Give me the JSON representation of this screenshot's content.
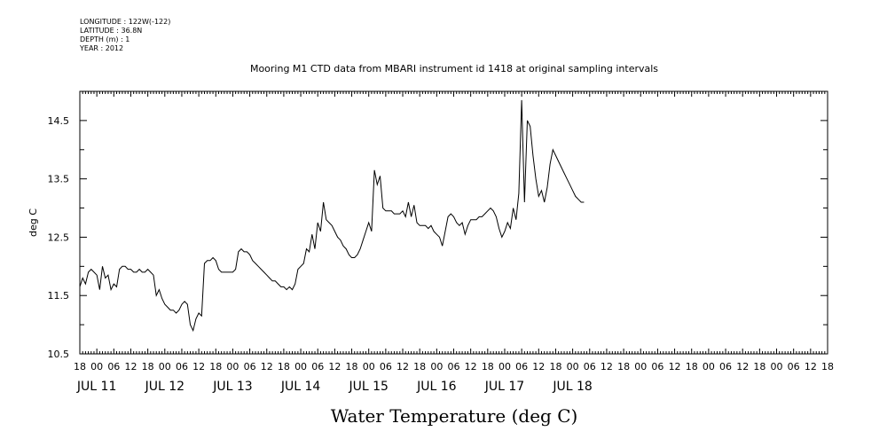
{
  "header": {
    "longitude": "LONGITUDE : 122W(-122)",
    "latitude": "LATITUDE : 36.8N",
    "depth": "DEPTH (m) : 1",
    "year": "YEAR : 2012"
  },
  "chart_data": {
    "type": "line",
    "title": "Mooring M1 CTD data from MBARI instrument id 1418 at original sampling intervals",
    "xlabel": "Water Temperature (deg C)",
    "ylabel": "deg C",
    "x_hour_range": [
      -6,
      258
    ],
    "ylim": [
      10.5,
      15.0
    ],
    "y_ticks": [
      "10.5",
      "11.5",
      "12.5",
      "13.5",
      "14.5"
    ],
    "hour_ticks": [
      "18",
      "00",
      "06",
      "12",
      "18",
      "00",
      "06",
      "12",
      "18",
      "00",
      "06",
      "12",
      "18",
      "00",
      "06",
      "12",
      "18",
      "00",
      "06",
      "12",
      "18",
      "00",
      "06",
      "12",
      "18",
      "00",
      "06",
      "12",
      "18",
      "00",
      "06",
      "12",
      "18",
      "00",
      "06",
      "12",
      "18",
      "00",
      "06",
      "12",
      "18",
      "00",
      "06",
      "12",
      "18"
    ],
    "date_labels": [
      "JUL 11",
      "JUL 12",
      "JUL 13",
      "JUL 14",
      "JUL 15",
      "JUL 16",
      "JUL 17",
      "JUL 18"
    ],
    "series": [
      {
        "points": [
          [
            -6,
            11.65
          ],
          [
            -5,
            11.8
          ],
          [
            -4,
            11.7
          ],
          [
            -3,
            11.9
          ],
          [
            -2,
            11.95
          ],
          [
            -1,
            11.9
          ],
          [
            0,
            11.85
          ],
          [
            1,
            11.6
          ],
          [
            2,
            12.0
          ],
          [
            3,
            11.8
          ],
          [
            4,
            11.85
          ],
          [
            5,
            11.6
          ],
          [
            6,
            11.7
          ],
          [
            7,
            11.65
          ],
          [
            8,
            11.95
          ],
          [
            9,
            12.0
          ],
          [
            10,
            12.0
          ],
          [
            11,
            11.95
          ],
          [
            12,
            11.95
          ],
          [
            13,
            11.9
          ],
          [
            14,
            11.9
          ],
          [
            15,
            11.95
          ],
          [
            16,
            11.9
          ],
          [
            17,
            11.9
          ],
          [
            18,
            11.95
          ],
          [
            19,
            11.9
          ],
          [
            20,
            11.85
          ],
          [
            21,
            11.5
          ],
          [
            22,
            11.6
          ],
          [
            23,
            11.45
          ],
          [
            24,
            11.35
          ],
          [
            25,
            11.3
          ],
          [
            26,
            11.25
          ],
          [
            27,
            11.25
          ],
          [
            28,
            11.2
          ],
          [
            29,
            11.25
          ],
          [
            30,
            11.35
          ],
          [
            31,
            11.4
          ],
          [
            32,
            11.35
          ],
          [
            33,
            11.0
          ],
          [
            34,
            10.9
          ],
          [
            35,
            11.1
          ],
          [
            36,
            11.2
          ],
          [
            37,
            11.15
          ],
          [
            38,
            12.05
          ],
          [
            39,
            12.1
          ],
          [
            40,
            12.1
          ],
          [
            41,
            12.15
          ],
          [
            42,
            12.1
          ],
          [
            43,
            11.95
          ],
          [
            44,
            11.9
          ],
          [
            45,
            11.9
          ],
          [
            46,
            11.9
          ],
          [
            47,
            11.9
          ],
          [
            48,
            11.9
          ],
          [
            49,
            11.95
          ],
          [
            50,
            12.25
          ],
          [
            51,
            12.3
          ],
          [
            52,
            12.25
          ],
          [
            53,
            12.25
          ],
          [
            54,
            12.2
          ],
          [
            55,
            12.1
          ],
          [
            56,
            12.05
          ],
          [
            57,
            12.0
          ],
          [
            58,
            11.95
          ],
          [
            59,
            11.9
          ],
          [
            60,
            11.85
          ],
          [
            61,
            11.8
          ],
          [
            62,
            11.75
          ],
          [
            63,
            11.75
          ],
          [
            64,
            11.7
          ],
          [
            65,
            11.65
          ],
          [
            66,
            11.65
          ],
          [
            67,
            11.6
          ],
          [
            68,
            11.65
          ],
          [
            69,
            11.6
          ],
          [
            70,
            11.7
          ],
          [
            71,
            11.95
          ],
          [
            72,
            12.0
          ],
          [
            73,
            12.05
          ],
          [
            74,
            12.3
          ],
          [
            75,
            12.25
          ],
          [
            76,
            12.55
          ],
          [
            77,
            12.3
          ],
          [
            78,
            12.75
          ],
          [
            79,
            12.6
          ],
          [
            80,
            13.1
          ],
          [
            81,
            12.8
          ],
          [
            82,
            12.75
          ],
          [
            83,
            12.7
          ],
          [
            84,
            12.6
          ],
          [
            85,
            12.5
          ],
          [
            86,
            12.45
          ],
          [
            87,
            12.35
          ],
          [
            88,
            12.3
          ],
          [
            89,
            12.2
          ],
          [
            90,
            12.15
          ],
          [
            91,
            12.15
          ],
          [
            92,
            12.2
          ],
          [
            93,
            12.3
          ],
          [
            94,
            12.45
          ],
          [
            95,
            12.6
          ],
          [
            96,
            12.75
          ],
          [
            97,
            12.6
          ],
          [
            98,
            13.65
          ],
          [
            99,
            13.4
          ],
          [
            100,
            13.55
          ],
          [
            101,
            13.0
          ],
          [
            102,
            12.95
          ],
          [
            103,
            12.95
          ],
          [
            104,
            12.95
          ],
          [
            105,
            12.9
          ],
          [
            106,
            12.9
          ],
          [
            107,
            12.9
          ],
          [
            108,
            12.95
          ],
          [
            109,
            12.85
          ],
          [
            110,
            13.1
          ],
          [
            111,
            12.85
          ],
          [
            112,
            13.05
          ],
          [
            113,
            12.75
          ],
          [
            114,
            12.7
          ],
          [
            115,
            12.7
          ],
          [
            116,
            12.7
          ],
          [
            117,
            12.65
          ],
          [
            118,
            12.7
          ],
          [
            119,
            12.6
          ],
          [
            120,
            12.55
          ],
          [
            121,
            12.5
          ],
          [
            122,
            12.35
          ],
          [
            123,
            12.6
          ],
          [
            124,
            12.85
          ],
          [
            125,
            12.9
          ],
          [
            126,
            12.85
          ],
          [
            127,
            12.75
          ],
          [
            128,
            12.7
          ],
          [
            129,
            12.75
          ],
          [
            130,
            12.55
          ],
          [
            131,
            12.7
          ],
          [
            132,
            12.8
          ],
          [
            133,
            12.8
          ],
          [
            134,
            12.8
          ],
          [
            135,
            12.85
          ],
          [
            136,
            12.85
          ],
          [
            137,
            12.9
          ],
          [
            138,
            12.95
          ],
          [
            139,
            13.0
          ],
          [
            140,
            12.95
          ],
          [
            141,
            12.85
          ],
          [
            142,
            12.65
          ],
          [
            143,
            12.5
          ],
          [
            144,
            12.6
          ],
          [
            145,
            12.75
          ],
          [
            146,
            12.65
          ],
          [
            147,
            13.0
          ],
          [
            148,
            12.8
          ],
          [
            149,
            13.25
          ],
          [
            150,
            14.85
          ],
          [
            151,
            13.1
          ],
          [
            152,
            14.5
          ],
          [
            153,
            14.4
          ],
          [
            154,
            13.9
          ],
          [
            155,
            13.5
          ],
          [
            156,
            13.2
          ],
          [
            157,
            13.3
          ],
          [
            158,
            13.1
          ],
          [
            159,
            13.35
          ],
          [
            160,
            13.75
          ],
          [
            161,
            14.0
          ],
          [
            162,
            13.9
          ],
          [
            163,
            13.8
          ],
          [
            164,
            13.7
          ],
          [
            165,
            13.6
          ],
          [
            166,
            13.5
          ],
          [
            167,
            13.4
          ],
          [
            168,
            13.3
          ],
          [
            169,
            13.2
          ],
          [
            170,
            13.15
          ],
          [
            171,
            13.1
          ],
          [
            172,
            13.1
          ]
        ]
      }
    ]
  }
}
